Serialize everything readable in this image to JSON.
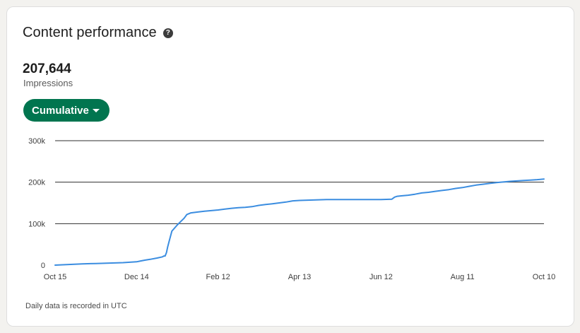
{
  "card": {
    "title": "Content performance",
    "help_icon": "question-circle-icon",
    "metric_value": "207,644",
    "metric_label": "Impressions",
    "dropdown_label": "Cumulative",
    "footnote": "Daily data is recorded in UTC"
  },
  "colors": {
    "line": "#3b8de0",
    "button": "#01754f",
    "grid": "#2f2f2f"
  },
  "chart_data": {
    "type": "line",
    "title": "",
    "xlabel": "",
    "ylabel": "",
    "ylim": [
      0,
      300000
    ],
    "y_ticks": [
      {
        "value": 0,
        "label": "0"
      },
      {
        "value": 100000,
        "label": "100k"
      },
      {
        "value": 200000,
        "label": "200k"
      },
      {
        "value": 300000,
        "label": "300k"
      }
    ],
    "x_ticks": [
      {
        "value": 0,
        "label": "Oct 15"
      },
      {
        "value": 60,
        "label": "Dec 14"
      },
      {
        "value": 120,
        "label": "Feb 12"
      },
      {
        "value": 180,
        "label": "Apr 13"
      },
      {
        "value": 240,
        "label": "Jun 12"
      },
      {
        "value": 300,
        "label": "Aug 11"
      },
      {
        "value": 360,
        "label": "Oct 10"
      }
    ],
    "xlim": [
      0,
      360
    ],
    "grid": true,
    "series": [
      {
        "x": [
          0,
          10,
          20,
          30,
          40,
          50,
          55,
          60,
          63,
          66,
          70,
          75,
          79,
          80,
          81,
          82,
          83,
          84,
          86,
          90,
          95,
          97,
          100,
          105,
          110,
          115,
          120,
          125,
          130,
          135,
          140,
          145,
          150,
          155,
          160,
          165,
          170,
          175,
          180,
          190,
          200,
          210,
          220,
          230,
          240,
          248,
          250,
          252,
          255,
          260,
          265,
          270,
          275,
          280,
          285,
          290,
          295,
          300,
          305,
          310,
          315,
          320,
          325,
          330,
          335,
          340,
          345,
          350,
          355,
          360
        ],
        "y": [
          0,
          1500,
          3000,
          4000,
          5000,
          6000,
          7000,
          8000,
          10000,
          12000,
          14000,
          17000,
          20000,
          22000,
          22000,
          30000,
          45000,
          58000,
          82000,
          97000,
          113000,
          122000,
          126000,
          128000,
          130000,
          131500,
          133000,
          135000,
          137000,
          138500,
          139500,
          141000,
          144000,
          146000,
          148000,
          150000,
          152000,
          155000,
          156000,
          157000,
          158000,
          158000,
          158000,
          158000,
          158000,
          159000,
          164000,
          166000,
          167000,
          168500,
          171000,
          174000,
          175500,
          178000,
          180000,
          182000,
          185000,
          187000,
          190000,
          193000,
          195000,
          197000,
          199000,
          200500,
          202000,
          203000,
          204000,
          205000,
          206000,
          207644
        ]
      }
    ]
  }
}
